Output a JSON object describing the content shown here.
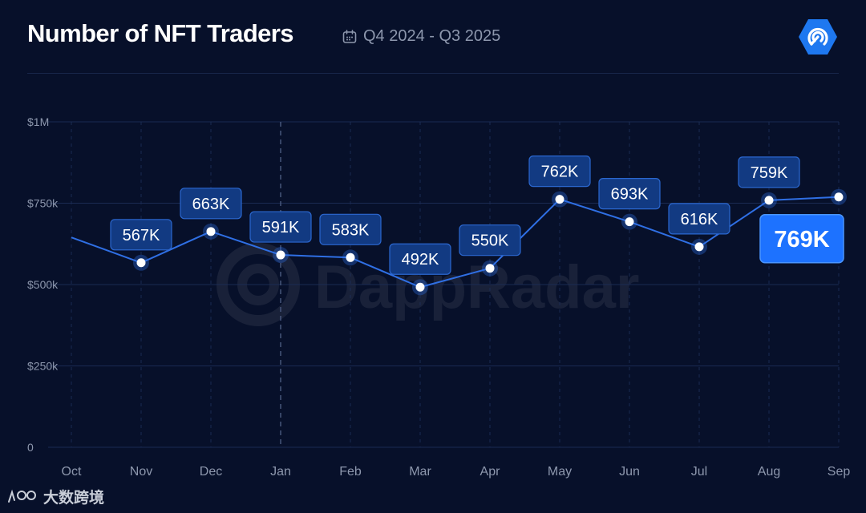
{
  "header": {
    "title": "Number of NFT Traders",
    "period": "Q4 2024 - Q3 2025"
  },
  "watermark": "DappRadar",
  "footer": {
    "brand": "大数跨境"
  },
  "icons": {
    "calendar": "calendar-icon",
    "logo": "dappradar-logo-icon",
    "footer_logo": "footer-logo-icon"
  },
  "colors": {
    "background": "#07102a",
    "line": "#2f6fe4",
    "label_bg": "#123a82",
    "label_border": "#2b67cf",
    "highlight": "#1d72ff",
    "grid": "#1a2a52"
  },
  "chart_data": {
    "type": "line",
    "title": "Number of NFT Traders",
    "categories": [
      "Oct",
      "Nov",
      "Dec",
      "Jan",
      "Feb",
      "Mar",
      "Apr",
      "May",
      "Jun",
      "Jul",
      "Aug",
      "Sep"
    ],
    "values": [
      645000,
      567000,
      663000,
      591000,
      583000,
      492000,
      550000,
      762000,
      693000,
      616000,
      759000,
      769000
    ],
    "data_labels": [
      "",
      "567K",
      "663K",
      "591K",
      "583K",
      "492K",
      "550K",
      "762K",
      "693K",
      "616K",
      "759K",
      "769K"
    ],
    "highlight_index": 11,
    "y_ticks": [
      0,
      250000,
      500000,
      750000,
      1000000
    ],
    "y_tick_labels": [
      "0",
      "$250k",
      "$500k",
      "$750k",
      "$1M"
    ],
    "ylim": [
      0,
      1000000
    ],
    "grid": true,
    "xlabel": "",
    "ylabel": ""
  }
}
